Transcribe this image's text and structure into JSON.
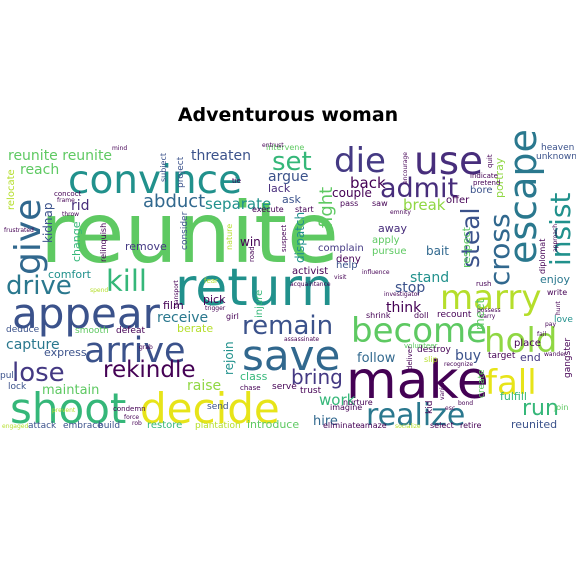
{
  "title": "Adventurous woman",
  "words": [
    {
      "t": "reunite",
      "c": "#5ec962"
    },
    {
      "t": "return",
      "c": "#21918c"
    },
    {
      "t": "make",
      "c": "#440154"
    },
    {
      "t": "decide",
      "c": "#e7e419"
    },
    {
      "t": "shoot",
      "c": "#35b779"
    },
    {
      "t": "appear",
      "c": "#3b528b"
    },
    {
      "t": "save",
      "c": "#31688e"
    },
    {
      "t": "convince",
      "c": "#21918c"
    },
    {
      "t": "escape",
      "c": "#2a788e"
    },
    {
      "t": "use",
      "c": "#472d7b"
    },
    {
      "t": "become",
      "c": "#5ec962"
    },
    {
      "t": "marry",
      "c": "#b5de2b"
    },
    {
      "t": "hold",
      "c": "#90d743"
    },
    {
      "t": "arrive",
      "c": "#3b528b"
    },
    {
      "t": "give",
      "c": "#31688e"
    },
    {
      "t": "die",
      "c": "#443983"
    },
    {
      "t": "fall",
      "c": "#e7e419"
    },
    {
      "t": "realize",
      "c": "#2a788e"
    },
    {
      "t": "kill",
      "c": "#35b779"
    },
    {
      "t": "remain",
      "c": "#3b528b"
    },
    {
      "t": "admit",
      "c": "#472d7b"
    },
    {
      "t": "set",
      "c": "#35b779"
    },
    {
      "t": "insist",
      "c": "#21918c"
    },
    {
      "t": "cross",
      "c": "#31688e"
    },
    {
      "t": "steal",
      "c": "#3b528b"
    },
    {
      "t": "drive",
      "c": "#2a788e"
    },
    {
      "t": "lose",
      "c": "#443983"
    },
    {
      "t": "rekindle",
      "c": "#440154"
    },
    {
      "t": "abduct",
      "c": "#31688e"
    },
    {
      "t": "bring",
      "c": "#443983"
    },
    {
      "t": "run",
      "c": "#35b779"
    },
    {
      "t": "reunite reunite",
      "c": "#5ec962"
    },
    {
      "t": "threaten",
      "c": "#3b528b"
    },
    {
      "t": "separate",
      "c": "#21918c"
    },
    {
      "t": "fight",
      "c": "#5ec962"
    },
    {
      "t": "back",
      "c": "#440154"
    },
    {
      "t": "break",
      "c": "#90d743"
    },
    {
      "t": "work",
      "c": "#35b779"
    },
    {
      "t": "capture",
      "c": "#2a788e"
    },
    {
      "t": "raise",
      "c": "#90d743"
    },
    {
      "t": "maintain",
      "c": "#5ec962"
    },
    {
      "t": "receive",
      "c": "#2a788e"
    },
    {
      "t": "follow",
      "c": "#31688e"
    },
    {
      "t": "think",
      "c": "#440154"
    },
    {
      "t": "stop",
      "c": "#3b528b"
    },
    {
      "t": "stand",
      "c": "#21918c"
    },
    {
      "t": "buy",
      "c": "#3b528b"
    },
    {
      "t": "reach",
      "c": "#5ec962"
    },
    {
      "t": "argue",
      "c": "#3b528b"
    },
    {
      "t": "rid",
      "c": "#472d7b"
    },
    {
      "t": "kidnap",
      "c": "#3b528b"
    },
    {
      "t": "change",
      "c": "#35b779"
    },
    {
      "t": "comfort",
      "c": "#21918c"
    },
    {
      "t": "hire",
      "c": "#31688e"
    },
    {
      "t": "class",
      "c": "#35b779"
    },
    {
      "t": "win",
      "c": "#440154"
    },
    {
      "t": "express",
      "c": "#3b528b"
    },
    {
      "t": "rejoin",
      "c": "#21918c"
    },
    {
      "t": "couple",
      "c": "#440154"
    },
    {
      "t": "away",
      "c": "#472d7b"
    },
    {
      "t": "bait",
      "c": "#31688e"
    },
    {
      "t": "enjoy",
      "c": "#2a788e"
    },
    {
      "t": "reunited",
      "c": "#3b528b"
    },
    {
      "t": "dispatch",
      "c": "#21918c"
    },
    {
      "t": "meet",
      "c": "#5ec962"
    },
    {
      "t": "fulfill",
      "c": "#35b779"
    },
    {
      "t": "end",
      "c": "#443983"
    },
    {
      "t": "respect",
      "c": "#5ec962"
    },
    {
      "t": "portray",
      "c": "#90d743"
    },
    {
      "t": "relocate",
      "c": "#b5de2b"
    },
    {
      "t": "deduce",
      "c": "#3b528b"
    },
    {
      "t": "smooth",
      "c": "#5ec962"
    },
    {
      "t": "defeat",
      "c": "#440154"
    },
    {
      "t": "restore",
      "c": "#35b779"
    },
    {
      "t": "introduce",
      "c": "#5ec962"
    },
    {
      "t": "ask",
      "c": "#3b528b"
    },
    {
      "t": "lack",
      "c": "#472d7b"
    },
    {
      "t": "remove",
      "c": "#443983"
    },
    {
      "t": "pick",
      "c": "#440154"
    },
    {
      "t": "film",
      "c": "#440154"
    },
    {
      "t": "berate",
      "c": "#b5de2b"
    },
    {
      "t": "injure",
      "c": "#35b779"
    },
    {
      "t": "bore",
      "c": "#3b528b"
    },
    {
      "t": "offer",
      "c": "#440154"
    },
    {
      "t": "deny",
      "c": "#440154"
    },
    {
      "t": "complain",
      "c": "#443983"
    },
    {
      "t": "apply",
      "c": "#5ec962"
    },
    {
      "t": "pursue",
      "c": "#5ec962"
    },
    {
      "t": "help",
      "c": "#3b528b"
    },
    {
      "t": "activist",
      "c": "#440154"
    },
    {
      "t": "place",
      "c": "#440154"
    },
    {
      "t": "create",
      "c": "#5ec962"
    },
    {
      "t": "gangster",
      "c": "#440154"
    },
    {
      "t": "destroy",
      "c": "#440154"
    },
    {
      "t": "recount",
      "c": "#440154"
    },
    {
      "t": "build",
      "c": "#3b528b"
    },
    {
      "t": "attack",
      "c": "#3b528b"
    },
    {
      "t": "embrace",
      "c": "#3b528b"
    },
    {
      "t": "send",
      "c": "#3b528b"
    },
    {
      "t": "trust",
      "c": "#440154"
    },
    {
      "t": "serve",
      "c": "#440154"
    },
    {
      "t": "target",
      "c": "#440154"
    },
    {
      "t": "kid",
      "c": "#440154"
    },
    {
      "t": "pull",
      "c": "#3b528b"
    },
    {
      "t": "lock",
      "c": "#3b528b"
    },
    {
      "t": "love",
      "c": "#21918c"
    },
    {
      "t": "heaven",
      "c": "#3b528b"
    },
    {
      "t": "unknown",
      "c": "#3b528b"
    },
    {
      "t": "join",
      "c": "#5ec962"
    },
    {
      "t": "start",
      "c": "#440154"
    },
    {
      "t": "execute",
      "c": "#440154"
    },
    {
      "t": "saw",
      "c": "#440154"
    },
    {
      "t": "pass",
      "c": "#440154"
    },
    {
      "t": "nurture",
      "c": "#440154"
    },
    {
      "t": "imagine",
      "c": "#440154"
    },
    {
      "t": "eliminate",
      "c": "#440154"
    },
    {
      "t": "amaze",
      "c": "#440154"
    },
    {
      "t": "select",
      "c": "#440154"
    },
    {
      "t": "retire",
      "c": "#440154"
    },
    {
      "t": "write",
      "c": "#440154"
    },
    {
      "t": "intervene",
      "c": "#5ec962"
    },
    {
      "t": "concoct",
      "c": "#440154"
    },
    {
      "t": "frustrated",
      "c": "#440154"
    },
    {
      "t": "relinquish",
      "c": "#440154"
    },
    {
      "t": "subject",
      "c": "#3b528b"
    },
    {
      "t": "project",
      "c": "#3b528b"
    },
    {
      "t": "consider",
      "c": "#3b528b"
    },
    {
      "t": "nature",
      "c": "#b5de2b"
    },
    {
      "t": "tie",
      "c": "#440154"
    },
    {
      "t": "mind",
      "c": "#440154"
    },
    {
      "t": "encourage",
      "c": "#440154"
    },
    {
      "t": "quit",
      "c": "#440154"
    },
    {
      "t": "indicate",
      "c": "#440154"
    },
    {
      "t": "pretend",
      "c": "#440154"
    },
    {
      "t": "emnity",
      "c": "#440154"
    },
    {
      "t": "diplomat",
      "c": "#440154"
    },
    {
      "t": "approach",
      "c": "#440154"
    },
    {
      "t": "investigator",
      "c": "#440154"
    },
    {
      "t": "influence",
      "c": "#440154"
    },
    {
      "t": "shrink",
      "c": "#440154"
    },
    {
      "t": "doll",
      "c": "#440154"
    },
    {
      "t": "volunteer",
      "c": "#5ec962"
    },
    {
      "t": "deliver",
      "c": "#440154"
    },
    {
      "t": "slip",
      "c": "#b5de2b"
    },
    {
      "t": "assassinate",
      "c": "#440154"
    },
    {
      "t": "grab",
      "c": "#440154"
    },
    {
      "t": "condemn",
      "c": "#440154"
    },
    {
      "t": "force",
      "c": "#440154"
    },
    {
      "t": "rob",
      "c": "#440154"
    },
    {
      "t": "chase",
      "c": "#440154"
    },
    {
      "t": "prevent",
      "c": "#b5de2b"
    },
    {
      "t": "transport",
      "c": "#440154"
    },
    {
      "t": "trigger",
      "c": "#440154"
    },
    {
      "t": "road",
      "c": "#440154"
    },
    {
      "t": "suspect",
      "c": "#440154"
    },
    {
      "t": "fear",
      "c": "#b5de2b"
    },
    {
      "t": "plantation",
      "c": "#b5de2b"
    },
    {
      "t": "esc",
      "c": "#440154"
    },
    {
      "t": "bond",
      "c": "#440154"
    },
    {
      "t": "vanish",
      "c": "#440154"
    },
    {
      "t": "hunt",
      "c": "#440154"
    },
    {
      "t": "spend",
      "c": "#b5de2b"
    },
    {
      "t": "frame",
      "c": "#440154"
    },
    {
      "t": "throw",
      "c": "#440154"
    },
    {
      "t": "acquaintance",
      "c": "#440154"
    },
    {
      "t": "carry",
      "c": "#440154"
    },
    {
      "t": "possess",
      "c": "#440154"
    },
    {
      "t": "socialize",
      "c": "#b5de2b"
    },
    {
      "t": "engaged",
      "c": "#b5de2b"
    },
    {
      "t": "fail",
      "c": "#440154"
    },
    {
      "t": "pay",
      "c": "#440154"
    },
    {
      "t": "wander",
      "c": "#440154"
    },
    {
      "t": "rush",
      "c": "#440154"
    },
    {
      "t": "visit",
      "c": "#440154"
    },
    {
      "t": "recognize",
      "c": "#440154"
    },
    {
      "t": "girl",
      "c": "#440154"
    },
    {
      "t": "entrust",
      "c": "#440154"
    }
  ]
}
